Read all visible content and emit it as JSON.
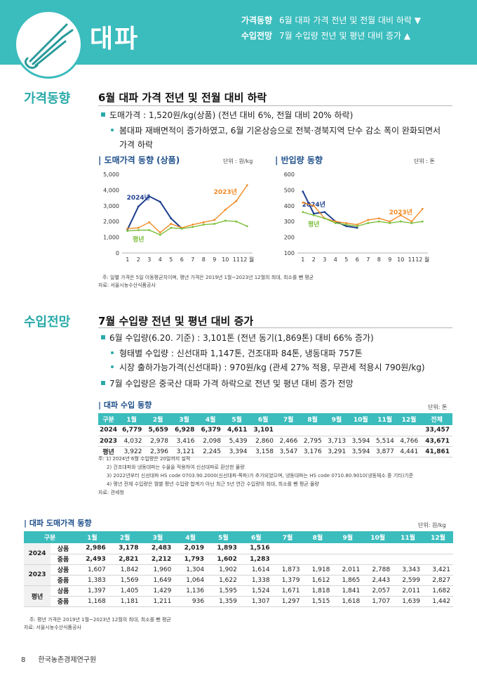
{
  "header": {
    "title": "대파",
    "summary": [
      {
        "label": "가격동향",
        "text": "6월 대파 가격 전년 및 전월 대비 하락 ▼"
      },
      {
        "label": "수입전망",
        "text": "7월 수입량 전년 및 평년 대비 증가 ▲"
      }
    ]
  },
  "price": {
    "label": "가격동향",
    "headline": "6월 대파 가격 전년 및 전월 대비 하락",
    "bullet1": "도매가격 : 1,520원/kg(상품) (전년 대비 6%, 전월 대비 20% 하락)",
    "sub1a": "봄대파 재배면적이 증가하였고, 6월 기온상승으로 전북·경북지역 단수 감소 폭이 완화되면서",
    "sub1b": "가격 하락",
    "note1": "주: 일별 가격은 5일 이동평균치이며, 평년 가격은 2019년 1월~2023년 12월의 최대, 최소를 뺀 평균",
    "note2": "자료: 서울시농수산식품공사"
  },
  "chart_data": [
    {
      "type": "line",
      "title": "도매가격 동향 (상품)",
      "unit": "단위 : 원/kg",
      "x_ticks": [
        "1",
        "2",
        "3",
        "4",
        "5",
        "6",
        "7",
        "8",
        "9",
        "10",
        "11",
        "12 월"
      ],
      "y_ticks": [
        "5,000",
        "4,000",
        "3,000",
        "2,000",
        "1,000",
        "0"
      ],
      "ylim": [
        0,
        5000
      ],
      "series": [
        {
          "name": "2024년",
          "color": "#1f3f8f",
          "values": [
            1500,
            2950,
            3600,
            3250,
            2200,
            1550
          ]
        },
        {
          "name": "2023년",
          "color": "#f08a24",
          "values": [
            1550,
            1600,
            1950,
            1300,
            1850,
            1600,
            1800,
            1950,
            2100,
            2750,
            3300,
            4300
          ]
        },
        {
          "name": "평년",
          "color": "#7cbf3c",
          "values": [
            1400,
            1450,
            1450,
            1150,
            1600,
            1550,
            1650,
            1800,
            1850,
            2050,
            2000,
            1700
          ]
        }
      ]
    },
    {
      "type": "line",
      "title": "반입량 동향",
      "unit": "단위 : 톤",
      "x_ticks": [
        "1",
        "2",
        "3",
        "4",
        "5",
        "6",
        "7",
        "8",
        "9",
        "10",
        "11",
        "12 월"
      ],
      "y_ticks": [
        "600",
        "500",
        "400",
        "300",
        "200",
        "100"
      ],
      "ylim": [
        100,
        600
      ],
      "series": [
        {
          "name": "2024년",
          "color": "#1f3f8f",
          "values": [
            490,
            350,
            360,
            300,
            270,
            260
          ]
        },
        {
          "name": "2023년",
          "color": "#f08a24",
          "values": [
            420,
            400,
            320,
            300,
            290,
            280,
            310,
            320,
            300,
            340,
            300,
            380
          ]
        },
        {
          "name": "평년",
          "color": "#7cbf3c",
          "values": [
            360,
            340,
            320,
            290,
            280,
            270,
            290,
            300,
            290,
            300,
            290,
            300
          ]
        }
      ]
    }
  ],
  "import": {
    "label": "수입전망",
    "headline": "7월 수입량 전년 및 평년 대비 증가",
    "bullet1": "6월 수입량(6.20. 기준) : 3,101톤 (전년 동기(1,869톤) 대비 66% 증가)",
    "sub1": "형태별 수입량 : 신선대파 1,147톤, 건조대파 84톤, 냉동대파 757톤",
    "sub2": "시장 출하가능가격(신선대파) : 970원/kg (관세 27% 적용, 무관세 적용시 790원/kg)",
    "bullet2": "7월 수입량은 중국산 대파 가격 하락으로 전년 및 평년 대비 증가 전망",
    "table_title": "대파 수입 동향",
    "unit": "단위: 톤",
    "cols": [
      "구분",
      "1월",
      "2월",
      "3월",
      "4월",
      "5월",
      "6월",
      "7월",
      "8월",
      "9월",
      "10월",
      "11월",
      "12월",
      "전체"
    ],
    "rows": [
      [
        "2024",
        "6,779",
        "5,659",
        "6,928",
        "6,379",
        "4,611",
        "3,101",
        "",
        "",
        "",
        "",
        "",
        "",
        "33,457"
      ],
      [
        "2023",
        "4,032",
        "2,978",
        "3,416",
        "2,098",
        "5,439",
        "2,860",
        "2,466",
        "2,795",
        "3,713",
        "3,594",
        "5,514",
        "4,766",
        "43,671"
      ],
      [
        "평년",
        "3,922",
        "2,396",
        "3,121",
        "2,245",
        "3,394",
        "3,158",
        "3,547",
        "3,176",
        "3,291",
        "3,594",
        "3,877",
        "4,441",
        "41,861"
      ]
    ],
    "notes": [
      "주: 1) 2024년 6월 수입량은 20일까지 실적",
      "2) 건조대파와 냉동대파는 수율을 적용하여 신선대파로 환산한 물량",
      "3) 2022년부터 신선대파 HS code 0703.90.2000(신선대파·쪽파)가 추가되었으며, 냉동대파는 HS code 0710.80.9010(냉동채소 중 기타)기준",
      "4) 평년 전체 수입량은 월별 평년 수입량 합계가 아닌 최근 5년 연간 수입량의 최대, 최소를 뺀 평균 물량",
      "자료: 관세청"
    ]
  },
  "wholesale": {
    "table_title": "대파 도매가격 동향",
    "unit": "단위: 원/kg",
    "cols": [
      "구분",
      "",
      "1월",
      "2월",
      "3월",
      "4월",
      "5월",
      "6월",
      "7월",
      "8월",
      "9월",
      "10월",
      "11월",
      "12월"
    ],
    "groups": [
      {
        "year": "2024",
        "rows": [
          [
            "상품",
            "2,986",
            "3,178",
            "2,483",
            "2,019",
            "1,893",
            "1,516",
            "",
            "",
            "",
            "",
            "",
            ""
          ],
          [
            "중품",
            "2,493",
            "2,821",
            "2,212",
            "1,793",
            "1,602",
            "1,283",
            "",
            "",
            "",
            "",
            "",
            ""
          ]
        ]
      },
      {
        "year": "2023",
        "rows": [
          [
            "상품",
            "1,607",
            "1,842",
            "1,960",
            "1,304",
            "1,902",
            "1,614",
            "1,873",
            "1,918",
            "2,011",
            "2,788",
            "3,343",
            "3,421"
          ],
          [
            "중품",
            "1,383",
            "1,569",
            "1,649",
            "1,064",
            "1,622",
            "1,338",
            "1,379",
            "1,612",
            "1,865",
            "2,443",
            "2,599",
            "2,827"
          ]
        ]
      },
      {
        "year": "평년",
        "rows": [
          [
            "상품",
            "1,397",
            "1,405",
            "1,429",
            "1,136",
            "1,595",
            "1,524",
            "1,671",
            "1,818",
            "1,841",
            "2,057",
            "2,011",
            "1,682"
          ],
          [
            "중품",
            "1,168",
            "1,181",
            "1,211",
            "936",
            "1,359",
            "1,307",
            "1,297",
            "1,515",
            "1,618",
            "1,707",
            "1,639",
            "1,442"
          ]
        ]
      }
    ],
    "notes": [
      "주: 평년 가격은 2019년 1월~2023년 12월의 최대, 최소를 뺀 평균",
      "자료: 서울시농수산식품공사"
    ]
  },
  "footer": {
    "page": "8",
    "org": "한국농촌경제연구원"
  }
}
